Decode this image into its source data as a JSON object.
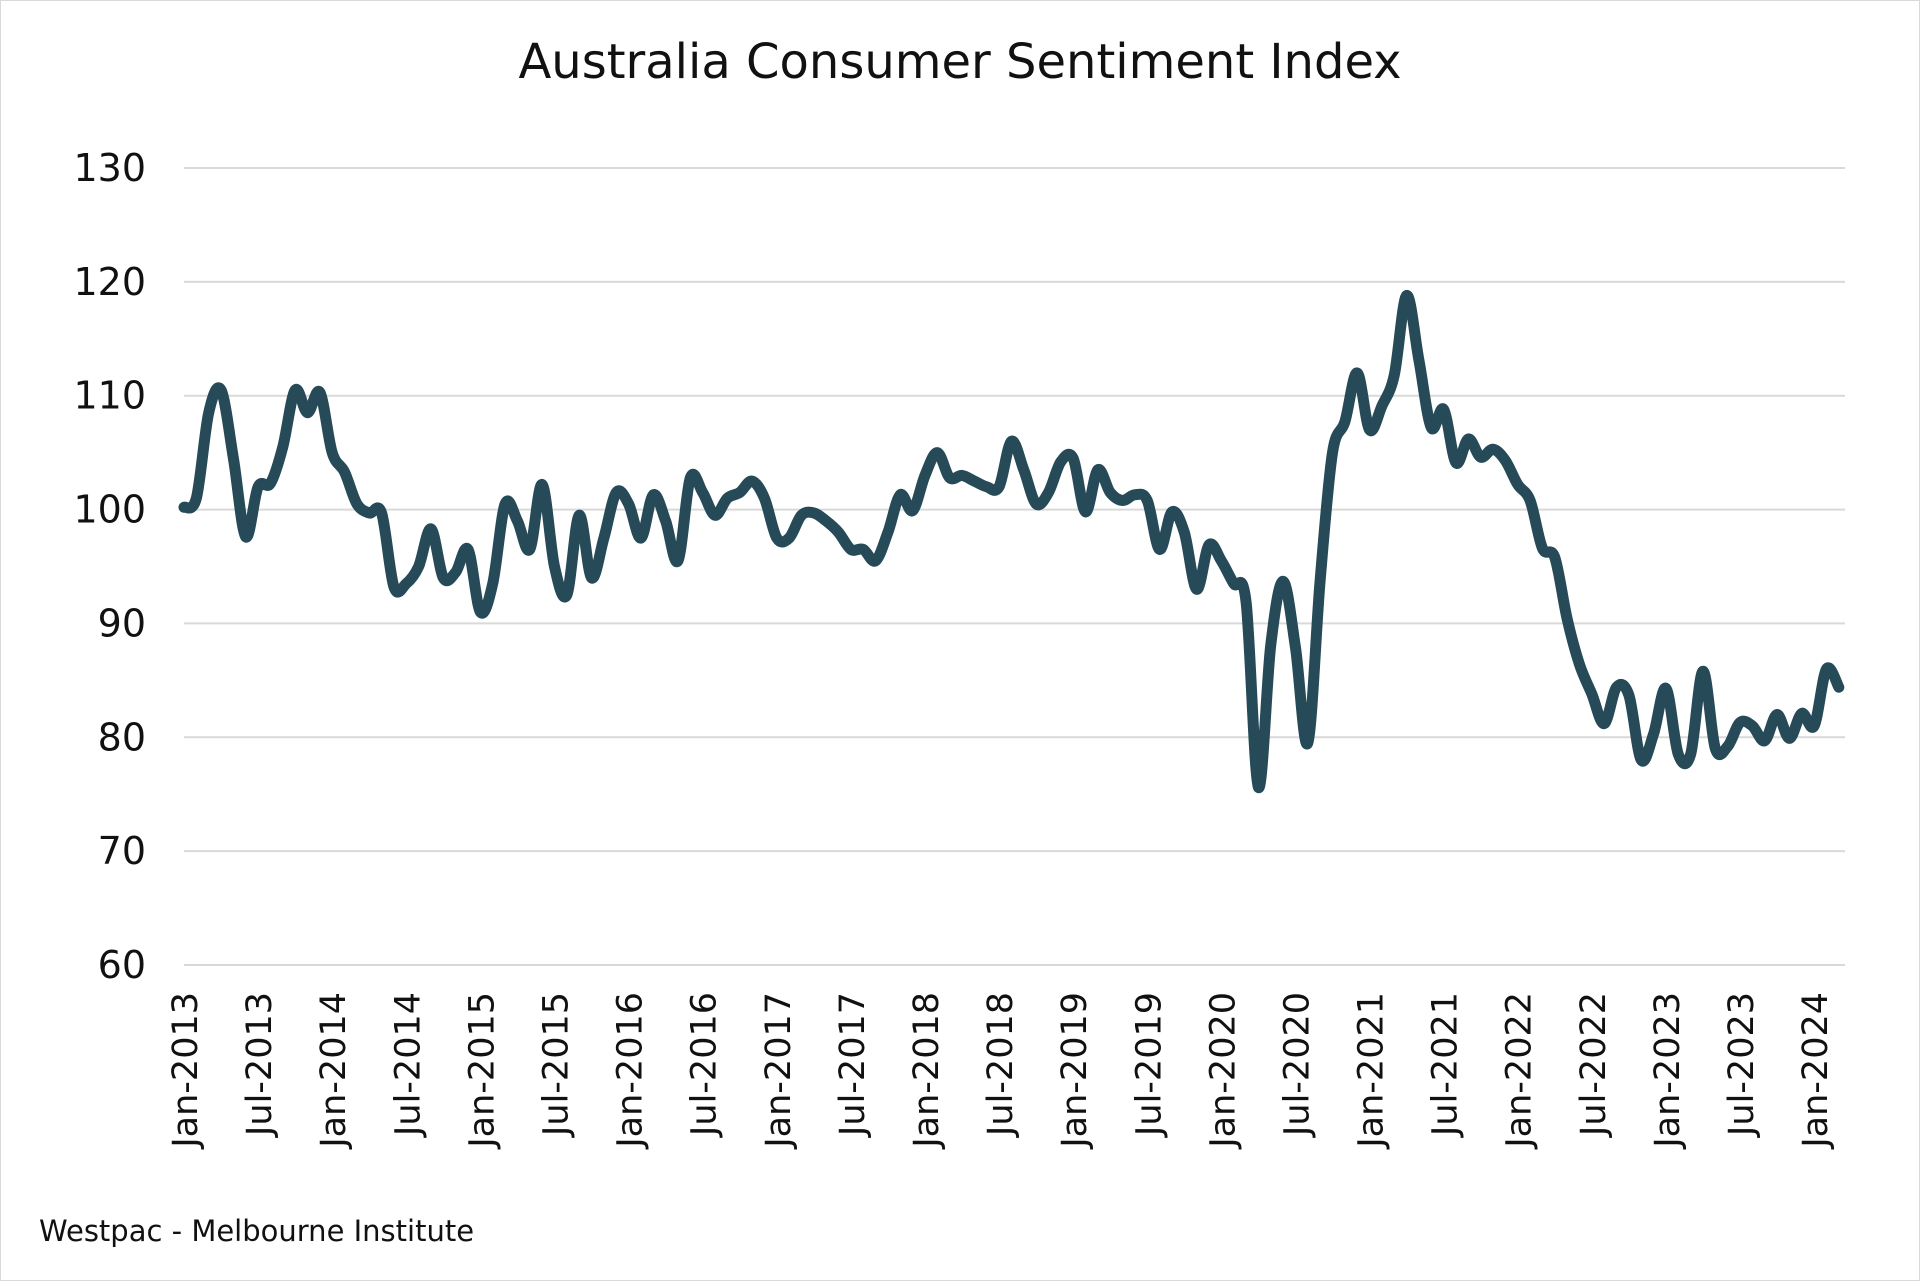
{
  "chart_data": {
    "type": "line",
    "title": "Australia Consumer Sentiment Index",
    "source": "Westpac - Melbourne Institute",
    "xlabel": "",
    "ylabel": "",
    "ylim": [
      60,
      130
    ],
    "yticks": [
      60,
      70,
      80,
      90,
      100,
      110,
      120,
      130
    ],
    "grid": true,
    "line_color": "#264a58",
    "x_start": "Jan-2013",
    "x_end": "Mar-2024",
    "x_frequency": "monthly",
    "xtick_labels": [
      "Jan-2013",
      "Jul-2013",
      "Jan-2014",
      "Jul-2014",
      "Jan-2015",
      "Jul-2015",
      "Jan-2016",
      "Jul-2016",
      "Jan-2017",
      "Jul-2017",
      "Jan-2018",
      "Jul-2018",
      "Jan-2019",
      "Jul-2019",
      "Jan-2020",
      "Jul-2020",
      "Jan-2021",
      "Jul-2021",
      "Jan-2022",
      "Jul-2022",
      "Jan-2023",
      "Jul-2023",
      "Jan-2024"
    ],
    "series": [
      {
        "values": [
          100.2,
          101.0,
          108.5,
          110.5,
          104.5,
          97.6,
          102.0,
          102.3,
          105.5,
          110.5,
          108.5,
          110.3,
          105.0,
          103.3,
          100.5,
          99.7,
          99.7,
          93.2,
          93.5,
          95.0,
          98.3,
          94.0,
          94.5,
          96.5,
          91.0,
          93.5,
          100.5,
          99.0,
          96.5,
          102.2,
          95.0,
          92.5,
          99.5,
          94.0,
          97.5,
          101.5,
          100.5,
          97.5,
          101.3,
          99.0,
          95.5,
          102.8,
          101.5,
          99.5,
          101.0,
          101.5,
          102.5,
          101.0,
          97.5,
          97.5,
          99.5,
          99.7,
          99.0,
          98.0,
          96.5,
          96.5,
          95.5,
          98.0,
          101.3,
          99.9,
          103.0,
          105.0,
          102.8,
          103.0,
          102.5,
          102.0,
          102.0,
          106.0,
          103.5,
          100.5,
          101.5,
          104.2,
          104.5,
          99.8,
          103.5,
          101.5,
          100.8,
          101.3,
          100.8,
          96.5,
          99.8,
          98.0,
          93.0,
          96.9,
          95.5,
          93.5,
          91.9,
          75.6,
          88.1,
          93.7,
          87.9,
          79.5,
          93.8,
          105.0,
          107.7,
          112.0,
          107.0,
          109.1,
          111.8,
          118.8,
          113.1,
          107.2,
          108.8,
          104.1,
          106.2,
          104.6,
          105.3,
          104.3,
          102.2,
          100.8,
          96.6,
          95.8,
          90.4,
          86.4,
          83.8,
          81.2,
          84.4,
          83.7,
          78.0,
          80.3,
          84.3,
          78.5,
          78.5,
          85.8,
          79.0,
          79.2,
          81.3,
          81.0,
          79.7,
          82.0,
          79.9,
          82.1,
          81.0,
          86.0,
          84.4
        ]
      }
    ]
  }
}
